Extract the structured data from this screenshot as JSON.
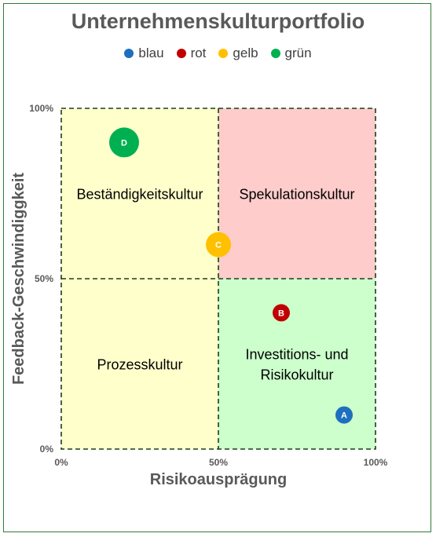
{
  "title": "Unternehmenskulturportfolio",
  "legend": [
    {
      "label": "blau",
      "color": "#1f6fbf"
    },
    {
      "label": "rot",
      "color": "#c00000"
    },
    {
      "label": "gelb",
      "color": "#ffc000"
    },
    {
      "label": "grün",
      "color": "#00b050"
    }
  ],
  "chart_data": {
    "type": "scatter",
    "title": "Unternehmenskulturportfolio",
    "xlabel": "Risikoausprägung",
    "ylabel": "Feedback-Geschwindiggkeit",
    "xlim": [
      0,
      100
    ],
    "ylim": [
      0,
      100
    ],
    "x_ticks": [
      "0%",
      "50%",
      "100%"
    ],
    "y_ticks": [
      "0%",
      "50%",
      "100%"
    ],
    "quadrants": [
      {
        "label_lines": [
          "Beständigkeitskultur"
        ],
        "x_range": [
          0,
          50
        ],
        "y_range": [
          50,
          100
        ],
        "color": "#ffffcc"
      },
      {
        "label_lines": [
          "Spekulationskultur"
        ],
        "x_range": [
          50,
          100
        ],
        "y_range": [
          50,
          100
        ],
        "color": "#ffcccc"
      },
      {
        "label_lines": [
          "Prozesskultur"
        ],
        "x_range": [
          0,
          50
        ],
        "y_range": [
          0,
          50
        ],
        "color": "#ffffcc"
      },
      {
        "label_lines": [
          "Investitions- und",
          "Risikokultur"
        ],
        "x_range": [
          50,
          100
        ],
        "y_range": [
          0,
          50
        ],
        "color": "#ccffcc"
      }
    ],
    "points": [
      {
        "label": "A",
        "x": 90,
        "y": 10,
        "color": "#1f6fbf",
        "size": "small"
      },
      {
        "label": "B",
        "x": 70,
        "y": 40,
        "color": "#c00000",
        "size": "small"
      },
      {
        "label": "C",
        "x": 50,
        "y": 60,
        "color": "#ffc000",
        "size": "medium"
      },
      {
        "label": "D",
        "x": 20,
        "y": 90,
        "color": "#00b050",
        "size": "large"
      }
    ]
  }
}
